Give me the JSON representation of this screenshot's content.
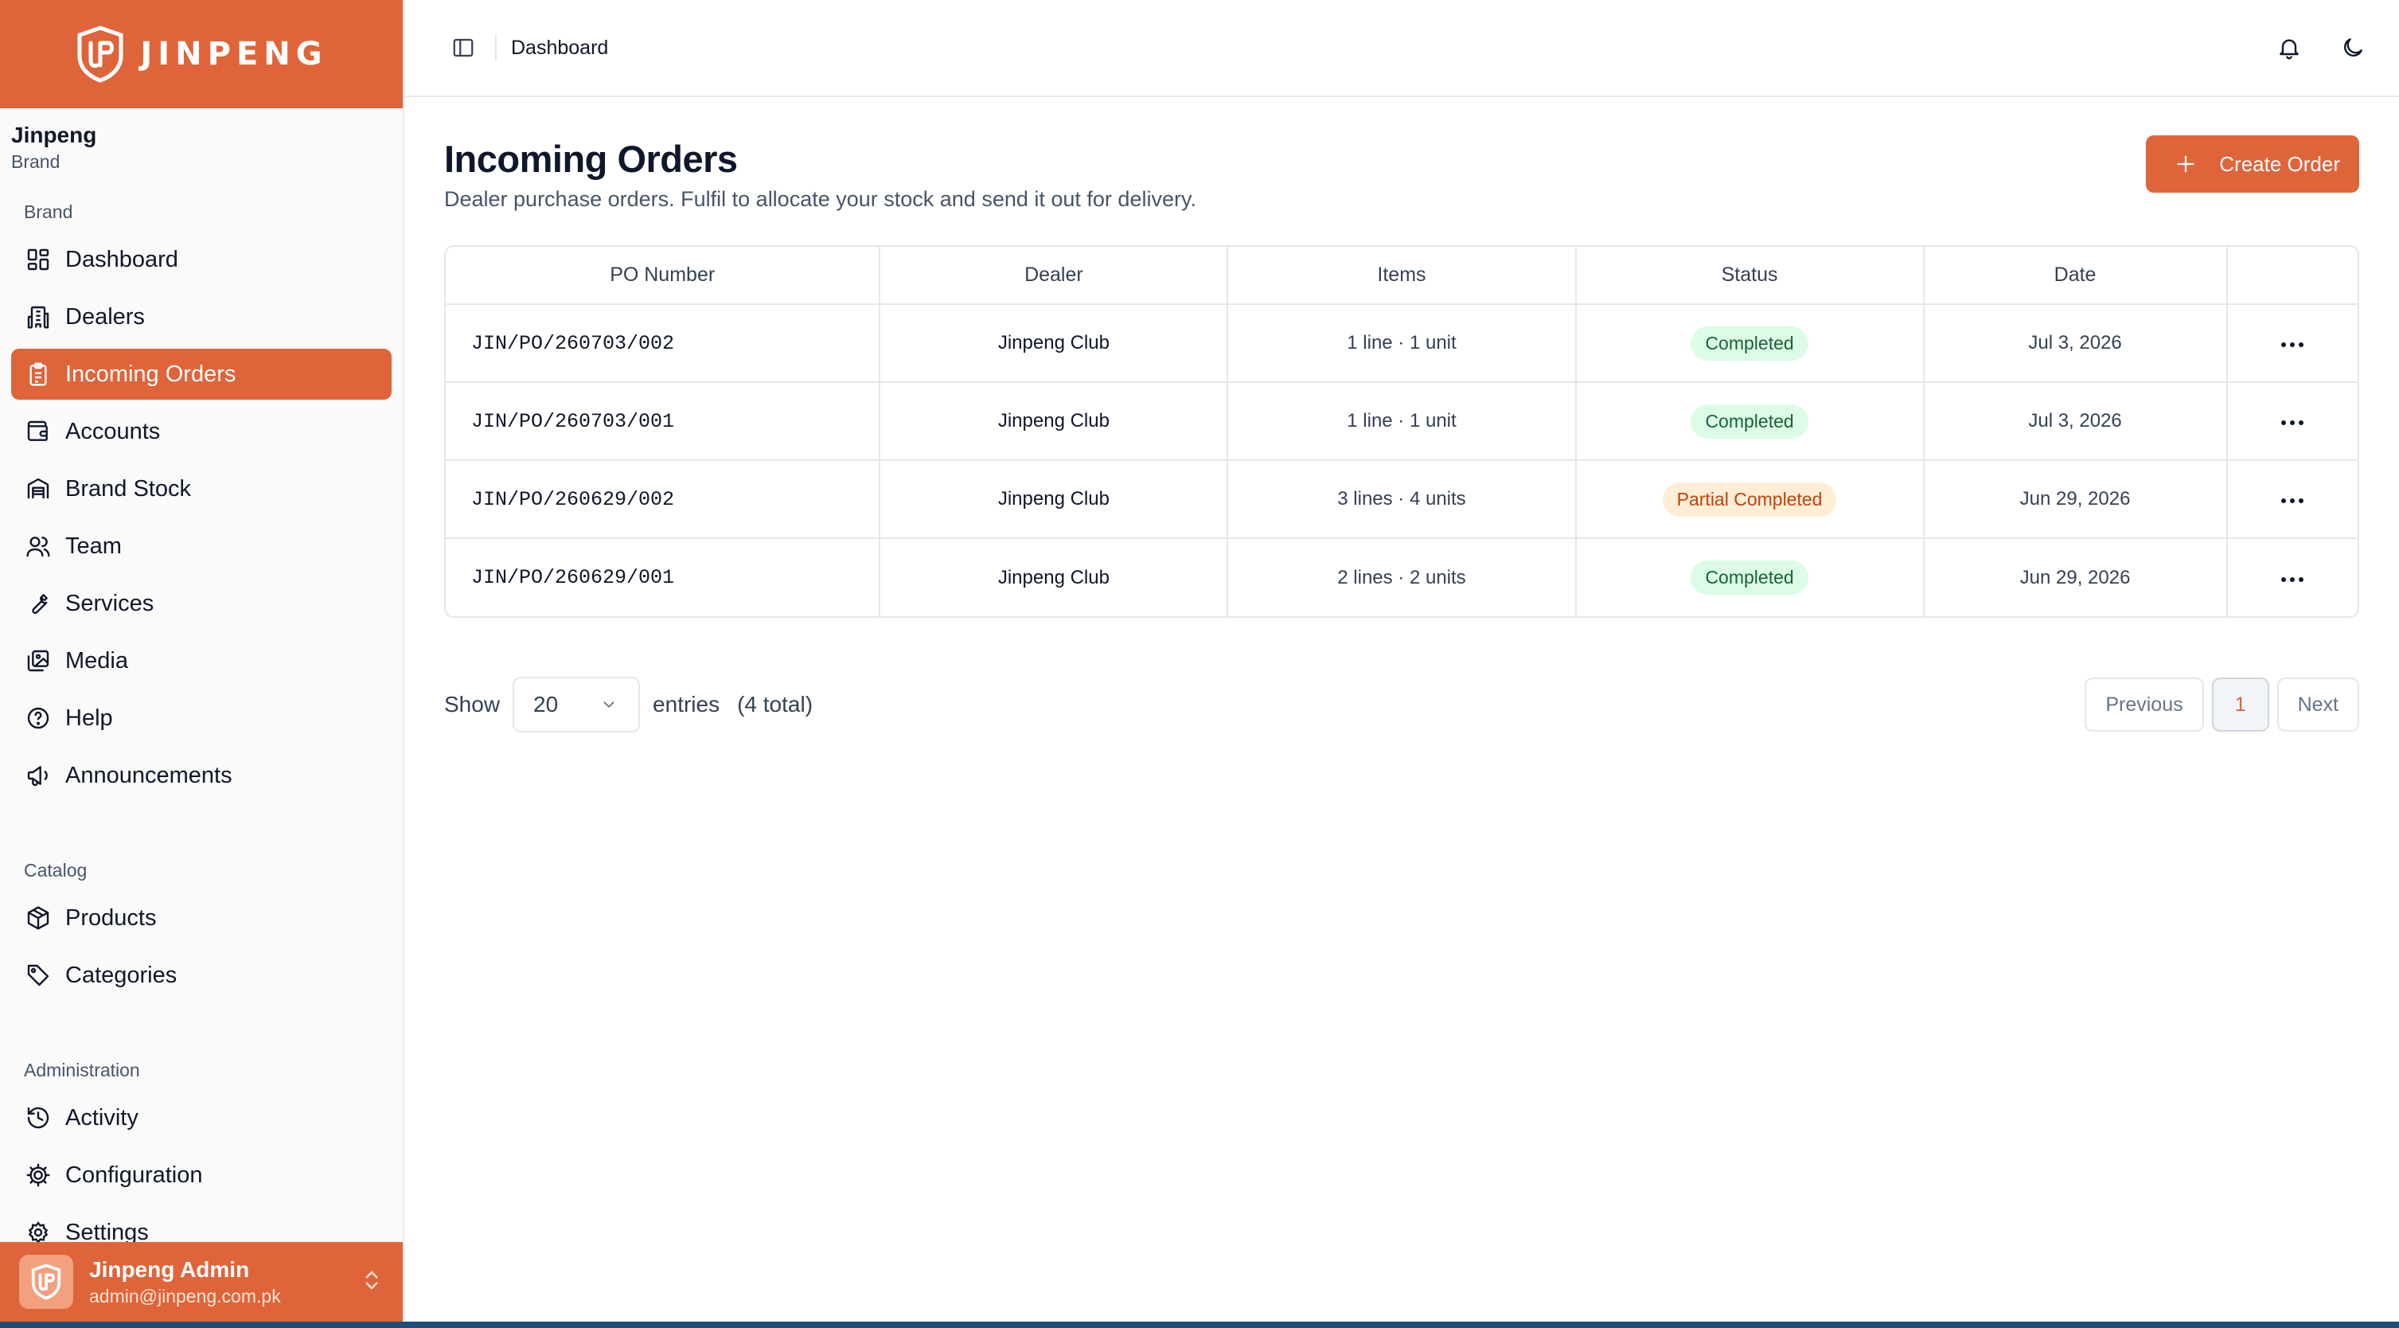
{
  "brand": {
    "name": "JINPENG"
  },
  "org": {
    "name": "Jinpeng",
    "role": "Brand"
  },
  "sidebar": {
    "sections": [
      {
        "label": "Brand",
        "items": [
          {
            "label": "Dashboard",
            "icon": "dashboard-icon"
          },
          {
            "label": "Dealers",
            "icon": "building-icon"
          },
          {
            "label": "Incoming Orders",
            "icon": "clipboard-icon",
            "active": true
          },
          {
            "label": "Accounts",
            "icon": "wallet-icon"
          },
          {
            "label": "Brand Stock",
            "icon": "warehouse-icon"
          },
          {
            "label": "Team",
            "icon": "users-icon"
          },
          {
            "label": "Services",
            "icon": "wrench-icon"
          },
          {
            "label": "Media",
            "icon": "images-icon"
          },
          {
            "label": "Help",
            "icon": "help-icon"
          },
          {
            "label": "Announcements",
            "icon": "megaphone-icon"
          }
        ]
      },
      {
        "label": "Catalog",
        "items": [
          {
            "label": "Products",
            "icon": "box-icon"
          },
          {
            "label": "Categories",
            "icon": "tag-icon"
          }
        ]
      },
      {
        "label": "Administration",
        "items": [
          {
            "label": "Activity",
            "icon": "history-icon"
          },
          {
            "label": "Configuration",
            "icon": "cog-icon"
          },
          {
            "label": "Settings",
            "icon": "settings-icon"
          }
        ]
      }
    ]
  },
  "user": {
    "name": "Jinpeng Admin",
    "email": "admin@jinpeng.com.pk"
  },
  "topbar": {
    "breadcrumb": "Dashboard"
  },
  "page": {
    "title": "Incoming Orders",
    "subtitle": "Dealer purchase orders. Fulfil to allocate your stock and send it out for delivery.",
    "create_label": "Create Order"
  },
  "table": {
    "columns": [
      "PO Number",
      "Dealer",
      "Items",
      "Status",
      "Date"
    ],
    "rows": [
      {
        "po": "JIN/PO/260703/002",
        "dealer": "Jinpeng Club",
        "items": "1 line · 1 unit",
        "status": "Completed",
        "date": "Jul 3, 2026"
      },
      {
        "po": "JIN/PO/260703/001",
        "dealer": "Jinpeng Club",
        "items": "1 line · 1 unit",
        "status": "Completed",
        "date": "Jul 3, 2026"
      },
      {
        "po": "JIN/PO/260629/002",
        "dealer": "Jinpeng Club",
        "items": "3 lines · 4 units",
        "status": "Partial Completed",
        "date": "Jun 29, 2026"
      },
      {
        "po": "JIN/PO/260629/001",
        "dealer": "Jinpeng Club",
        "items": "2 lines · 2 units",
        "status": "Completed",
        "date": "Jun 29, 2026"
      }
    ]
  },
  "pagination": {
    "show_label": "Show",
    "page_size": "20",
    "entries_label": "entries",
    "total_label": "(4 total)",
    "previous_label": "Previous",
    "current_page": "1",
    "next_label": "Next"
  },
  "colors": {
    "accent": "#e0643a",
    "completed_bg": "#dcfce7",
    "completed_fg": "#166534",
    "partial_bg": "#ffedd5",
    "partial_fg": "#c2410c"
  }
}
